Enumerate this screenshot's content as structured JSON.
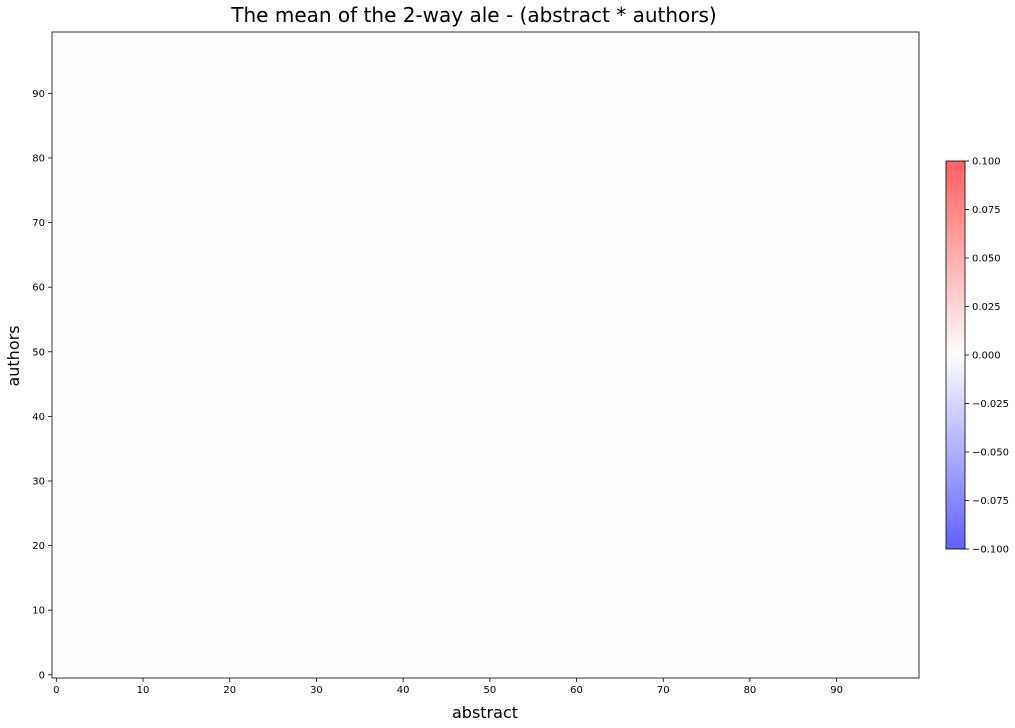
{
  "chart_data": {
    "type": "heatmap",
    "title": "The mean of the 2-way ale - (abstract * authors)",
    "xlabel": "abstract",
    "ylabel": "authors",
    "xlim": [
      -0.5,
      99.5
    ],
    "ylim": [
      -0.5,
      99.5
    ],
    "x_ticks": [
      0,
      10,
      20,
      30,
      40,
      50,
      60,
      70,
      80,
      90
    ],
    "y_ticks": [
      0,
      10,
      20,
      30,
      40,
      50,
      60,
      70,
      80,
      90
    ],
    "values_description_constant": 0.0,
    "colormap": "bwr",
    "colorbar": {
      "min": -0.1,
      "max": 0.1,
      "ticks": [
        "0.100",
        "0.075",
        "0.050",
        "0.025",
        "0.000",
        "−0.025",
        "−0.050",
        "−0.075",
        "−0.100"
      ],
      "tick_values": [
        0.1,
        0.075,
        0.05,
        0.025,
        0.0,
        -0.025,
        -0.05,
        -0.075,
        -0.1
      ],
      "color_high": "#ff6060",
      "color_mid": "#fdfdfd",
      "color_low": "#6060ff"
    },
    "grid": false,
    "heatmap_fill": "#fdfdfd"
  }
}
